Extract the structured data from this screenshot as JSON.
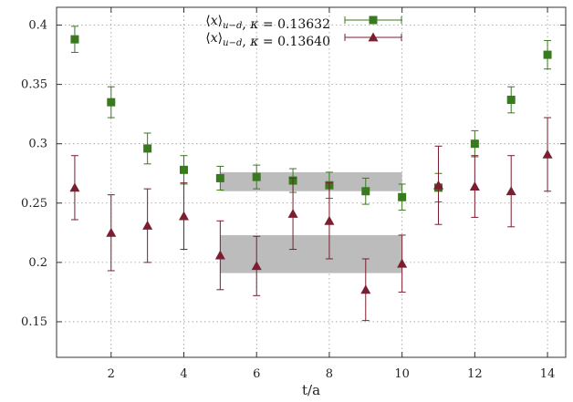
{
  "chart_data": {
    "type": "scatter",
    "title": "",
    "xlabel": "t/a",
    "ylabel": "",
    "xlim": [
      0.5,
      14.5
    ],
    "ylim": [
      0.12,
      0.415
    ],
    "xticks": [
      2,
      4,
      6,
      8,
      10,
      12,
      14
    ],
    "yticks": [
      0.15,
      0.2,
      0.25,
      0.3,
      0.35,
      0.4
    ],
    "xtick_labels": [
      "2",
      "4",
      "6",
      "8",
      "10",
      "12",
      "14"
    ],
    "ytick_labels": [
      "0.15",
      "0.2",
      "0.25",
      "0.3",
      "0.35",
      "0.4"
    ],
    "grid": true,
    "legend_position": "top-center",
    "series": [
      {
        "name": "⟨x⟩u−d, κ = 0.13632",
        "legend": {
          "bracket_open": "⟨",
          "var": "x",
          "bracket_close": "⟩",
          "sub": "u−d",
          "rest": ", ",
          "kappa": "κ",
          "value": " = 0.13632"
        },
        "color": "#3a7a1e",
        "marker": "square",
        "x": [
          1,
          2,
          3,
          4,
          5,
          6,
          7,
          8,
          9,
          10,
          11,
          12,
          13,
          14
        ],
        "y": [
          0.388,
          0.335,
          0.296,
          0.278,
          0.271,
          0.272,
          0.269,
          0.265,
          0.26,
          0.255,
          0.263,
          0.3,
          0.337,
          0.375
        ],
        "yerr": [
          0.011,
          0.013,
          0.013,
          0.012,
          0.01,
          0.01,
          0.01,
          0.011,
          0.011,
          0.011,
          0.012,
          0.011,
          0.011,
          0.012
        ],
        "band": {
          "x": [
            5,
            10
          ],
          "y": [
            0.26,
            0.276
          ]
        }
      },
      {
        "name": "⟨x⟩u−d, κ = 0.13640",
        "legend": {
          "bracket_open": "⟨",
          "var": "x",
          "bracket_close": "⟩",
          "sub": "u−d",
          "rest": ", ",
          "kappa": "κ",
          "value": " = 0.13640"
        },
        "color": "#7a1e30",
        "marker": "triangle",
        "x": [
          1,
          2,
          3,
          4,
          5,
          6,
          7,
          8,
          9,
          10,
          11,
          12,
          13,
          14
        ],
        "y": [
          0.263,
          0.225,
          0.231,
          0.239,
          0.206,
          0.197,
          0.241,
          0.235,
          0.177,
          0.199,
          0.265,
          0.264,
          0.26,
          0.291
        ],
        "yerr": [
          0.027,
          0.032,
          0.031,
          0.028,
          0.029,
          0.025,
          0.03,
          0.032,
          0.026,
          0.024,
          0.033,
          0.026,
          0.03,
          0.031
        ],
        "band": {
          "x": [
            5,
            10
          ],
          "y": [
            0.191,
            0.223
          ]
        }
      }
    ]
  }
}
